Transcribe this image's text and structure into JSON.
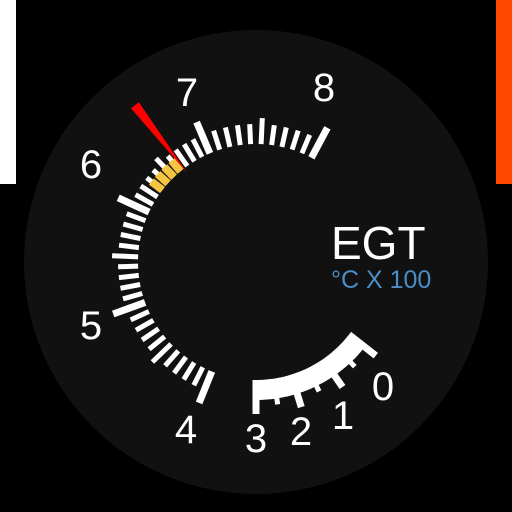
{
  "gauge": {
    "title": "EGT",
    "unit": "°C X 100",
    "scale_labels": [
      "0",
      "1",
      "2",
      "3",
      "4",
      "5",
      "6",
      "7",
      "8"
    ],
    "needle_value": 6.65,
    "caution_range": [
      6.3,
      6.6
    ],
    "colors": {
      "background": "#000000",
      "face": "#111111",
      "ticks": "#ffffff",
      "labels": "#ffffff",
      "unit_text": "#4a8ec8",
      "needle": "#ff0000",
      "caution_band": "#f5c542",
      "left_edge_bar": "#ffffff",
      "right_edge_bar": "#ff4a00"
    }
  }
}
